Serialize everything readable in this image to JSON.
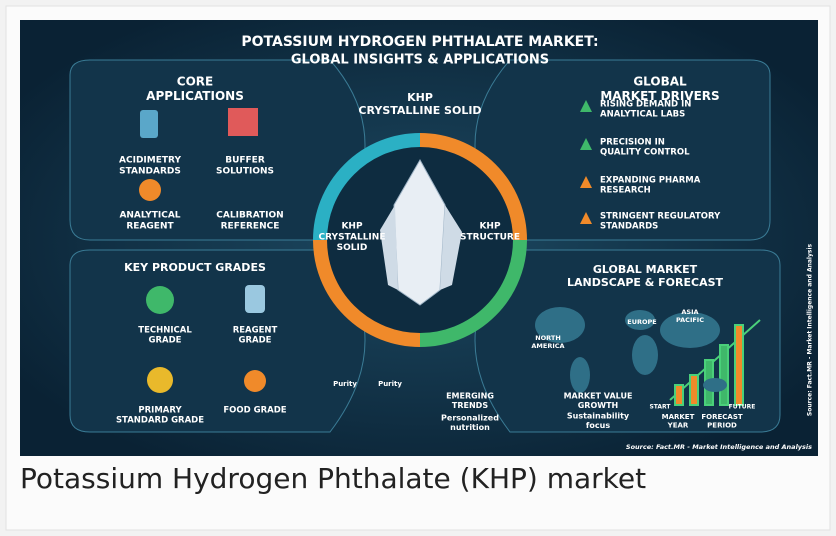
{
  "image": {
    "title": "POTASSIUM HYDROGEN PHTHALATE MARKET:",
    "subtitle": "GLOBAL INSIGHTS & APPLICATIONS",
    "core_applications": {
      "title": [
        "CORE",
        "APPLICATIONS"
      ],
      "items": [
        [
          "ACIDIMETRY",
          "STANDARDS"
        ],
        [
          "BUFFER",
          "SOLUTIONS"
        ],
        [
          "ANALYTICAL",
          "REAGENT"
        ],
        [
          "CALIBRATION",
          "REFERENCE"
        ]
      ]
    },
    "market_drivers": {
      "title": [
        "GLOBAL",
        "MARKET DRIVERS"
      ],
      "items": [
        [
          "RISING DEMAND IN",
          "ANALYTICAL LABS"
        ],
        [
          "PRECISION IN",
          "QUALITY CONTROL"
        ],
        [
          "EXPANDING PHARMA",
          "RESEARCH"
        ],
        [
          "STRINGENT REGULATORY",
          "STANDARDS"
        ]
      ]
    },
    "center": {
      "top": [
        "KHP",
        "CRYSTALLINE SOLID"
      ],
      "left": [
        "KHP",
        "CRYSTALLINE",
        "SOLID"
      ],
      "right": [
        "KHP",
        "STRUCTURE"
      ]
    },
    "product_grades": {
      "title": [
        "KEY PRODUCT GRADES"
      ],
      "items": [
        [
          "TECHNICAL",
          "GRADE"
        ],
        [
          "REAGENT",
          "GRADE"
        ],
        [
          "PRIMARY",
          "STANDARD GRADE"
        ],
        [
          "FOOD GRADE"
        ]
      ],
      "gauges": [
        "Purity",
        "Purity"
      ]
    },
    "emerging": {
      "title": [
        "EMERGING",
        "TRENDS"
      ],
      "text": [
        "Personalized",
        "nutrition"
      ]
    },
    "landscape": {
      "title": [
        "GLOBAL MARKET",
        "LANDSCAPE & FORECAST"
      ],
      "regions": [
        [
          "NORTH",
          "AMERICA"
        ],
        [
          "EUROPE"
        ],
        [
          "ASIA",
          "PACIFIC"
        ]
      ],
      "growth": [
        "MARKET VALUE",
        "GROWTH"
      ],
      "growth_note": [
        "Sustainability",
        "focus"
      ],
      "start": "START",
      "future": "FUTURE",
      "market_year": [
        "MARKET",
        "YEAR"
      ],
      "forecast_period": [
        "FORECAST",
        "PERIOD"
      ]
    },
    "source": "Source: Fact.MR - Market Intelligence and Analysis",
    "side_source": "Source: Fact.MR - Market Intelligence and Analysis"
  },
  "caption": "Potassium Hydrogen Phthalate (KHP) market"
}
